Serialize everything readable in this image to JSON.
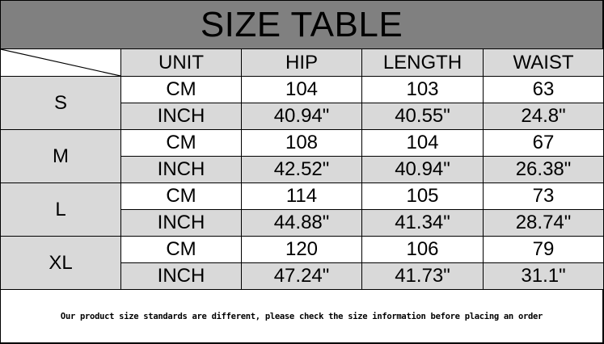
{
  "title": "SIZE TABLE",
  "headers": [
    "UNIT",
    "HIP",
    "LENGTH",
    "WAIST"
  ],
  "rows": [
    {
      "size": "S",
      "cm": {
        "unit": "CM",
        "hip": "104",
        "length": "103",
        "waist": "63"
      },
      "inch": {
        "unit": "INCH",
        "hip": "40.94\"",
        "length": "40.55\"",
        "waist": "24.8\""
      }
    },
    {
      "size": "M",
      "cm": {
        "unit": "CM",
        "hip": "108",
        "length": "104",
        "waist": "67"
      },
      "inch": {
        "unit": "INCH",
        "hip": "42.52\"",
        "length": "40.94\"",
        "waist": "26.38\""
      }
    },
    {
      "size": "L",
      "cm": {
        "unit": "CM",
        "hip": "114",
        "length": "105",
        "waist": "73"
      },
      "inch": {
        "unit": "INCH",
        "hip": "44.88\"",
        "length": "41.34\"",
        "waist": "28.74\""
      }
    },
    {
      "size": "XL",
      "cm": {
        "unit": "CM",
        "hip": "120",
        "length": "106",
        "waist": "79"
      },
      "inch": {
        "unit": "INCH",
        "hip": "47.24\"",
        "length": "41.73\"",
        "waist": "31.1\""
      }
    }
  ],
  "note": "Our product size standards are different, please check the size information before placing an order",
  "colors": {
    "title_bg": "#808080",
    "cell_gray": "#d9d9d9"
  }
}
